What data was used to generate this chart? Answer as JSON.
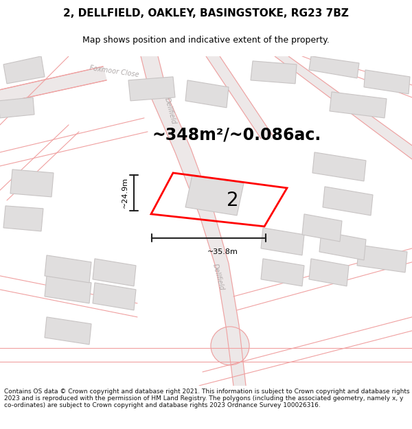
{
  "title": "2, DELLFIELD, OAKLEY, BASINGSTOKE, RG23 7BZ",
  "subtitle": "Map shows position and indicative extent of the property.",
  "area_text": "~348m²/~0.086ac.",
  "dim_width": "~35.8m",
  "dim_height": "~24.9m",
  "label": "2",
  "footer": "Contains OS data © Crown copyright and database right 2021. This information is subject to Crown copyright and database rights 2023 and is reproduced with the permission of HM Land Registry. The polygons (including the associated geometry, namely x, y co-ordinates) are subject to Crown copyright and database rights 2023 Ordnance Survey 100026316.",
  "map_bg": "#f7f6f6",
  "road_line_color": "#f0a0a0",
  "road_fill_color": "#ede8e8",
  "building_face": "#e0dede",
  "building_edge": "#c8c4c4",
  "property_color": "#ff0000",
  "dim_color": "#222222",
  "road_label_color": "#b0aaaa",
  "title_fontsize": 11,
  "subtitle_fontsize": 9,
  "area_fontsize": 17,
  "label_fontsize": 20,
  "footer_fontsize": 6.5
}
